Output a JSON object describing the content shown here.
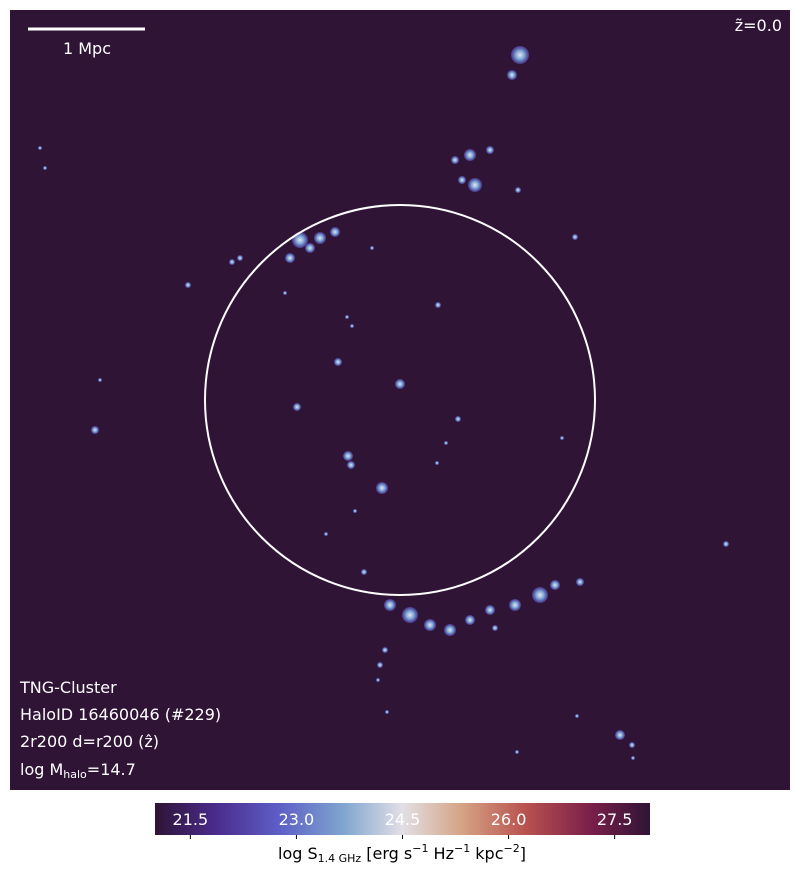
{
  "map": {
    "scale_bar_label": "1 Mpc",
    "redshift": "z̃=0.0",
    "info": [
      "TNG-Cluster",
      "HaloID 16460046 (#229)",
      "2r200 d=r200 (ẑ)"
    ],
    "mass_label": {
      "prefix": "log M",
      "subscript": "halo",
      "suffix": "=14.7"
    }
  },
  "colorbar": {
    "clim": [
      21,
      28
    ],
    "ticks": [
      21.5,
      {
        "value": 23,
        "label": "23.0"
      },
      24.5,
      {
        "value": 26,
        "label": "26.0"
      },
      27.5
    ],
    "label": {
      "main": "log S",
      "subscript": "1.4 GHz",
      "unit1": " [erg s",
      "exp1": "−1",
      "unit2": " Hz",
      "exp2": "−1",
      "unit3": " kpc",
      "exp3": "−2",
      "end": "]"
    }
  }
}
